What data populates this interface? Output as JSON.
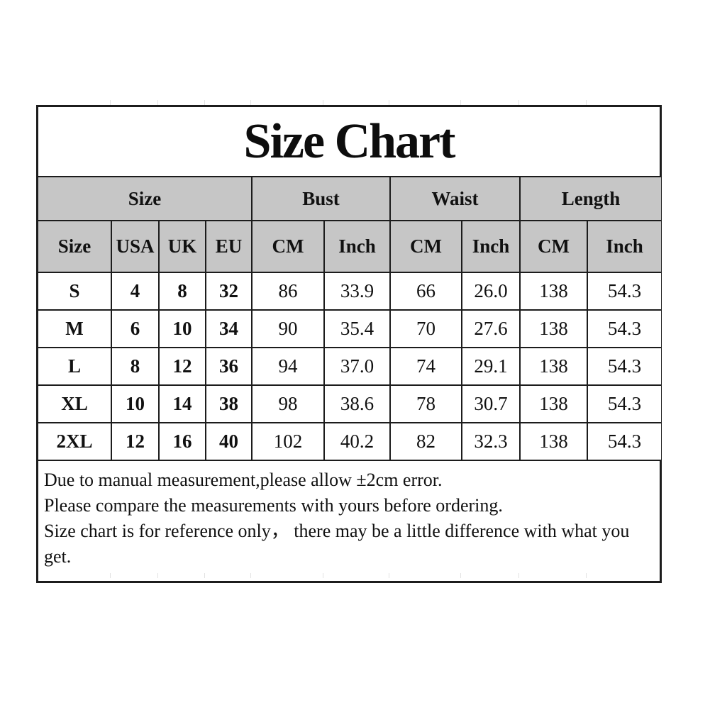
{
  "title": "Size Chart",
  "table": {
    "group_headers": [
      {
        "label": "Size",
        "span": 4
      },
      {
        "label": "Bust",
        "span": 2
      },
      {
        "label": "Waist",
        "span": 2
      },
      {
        "label": "Length",
        "span": 2
      }
    ],
    "sub_headers": [
      "Size",
      "USA",
      "UK",
      "EU",
      "CM",
      "Inch",
      "CM",
      "Inch",
      "CM",
      "Inch"
    ],
    "rows": [
      [
        "S",
        "4",
        "8",
        "32",
        "86",
        "33.9",
        "66",
        "26.0",
        "138",
        "54.3"
      ],
      [
        "M",
        "6",
        "10",
        "34",
        "90",
        "35.4",
        "70",
        "27.6",
        "138",
        "54.3"
      ],
      [
        "L",
        "8",
        "12",
        "36",
        "94",
        "37.0",
        "74",
        "29.1",
        "138",
        "54.3"
      ],
      [
        "XL",
        "10",
        "14",
        "38",
        "98",
        "38.6",
        "78",
        "30.7",
        "138",
        "54.3"
      ],
      [
        "2XL",
        "12",
        "16",
        "40",
        "102",
        "40.2",
        "82",
        "32.3",
        "138",
        "54.3"
      ]
    ]
  },
  "notes": [
    "Due to manual measurement,please allow ±2cm error.",
    "Please compare the measurements with yours before ordering.",
    "Size chart is for reference only， there may be a little difference with what you get."
  ],
  "colors": {
    "header_bg": "#c6c6c6",
    "border": "#1c1c1c",
    "text": "#111111",
    "page_bg": "#ffffff"
  }
}
